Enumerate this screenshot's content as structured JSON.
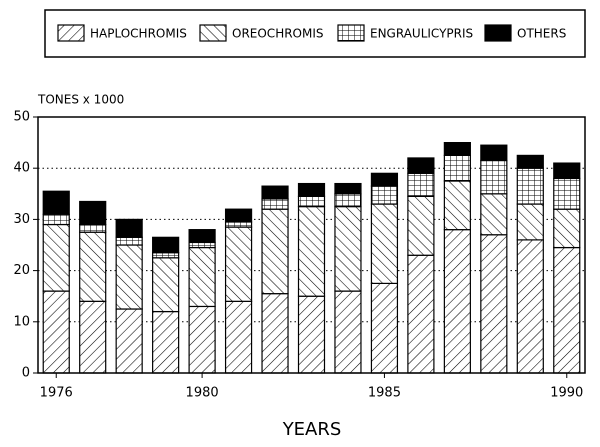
{
  "chart_data": {
    "type": "stacked_bar",
    "y_label": "TONES x 1000",
    "x_label": "YEARS",
    "categories": [
      "1976",
      null,
      null,
      null,
      "1980",
      null,
      null,
      null,
      null,
      "1985",
      null,
      null,
      null,
      null,
      "1990"
    ],
    "series": [
      {
        "name": "HAPLOCHROMIS",
        "color": "#000000",
        "hatch": "forward",
        "values": [
          16,
          14,
          12.5,
          12,
          13,
          14,
          15.5,
          15,
          16,
          17.5,
          23,
          28,
          27,
          26,
          24.5
        ]
      },
      {
        "name": "OREOCHROMIS",
        "color": "#000000",
        "hatch": "backward",
        "values": [
          13,
          13.5,
          12.5,
          10.5,
          11.5,
          14.5,
          16.5,
          17.5,
          16.5,
          15.5,
          11.5,
          9.5,
          8,
          7,
          7.5
        ]
      },
      {
        "name": "ENGRAULICYPRIS",
        "color": "#000000",
        "hatch": "cross",
        "values": [
          2,
          1.5,
          1.5,
          1,
          1,
          1,
          2,
          2,
          2.5,
          3.5,
          4.5,
          5,
          6.5,
          7,
          6
        ]
      },
      {
        "name": "OTHERS",
        "color": "#000000",
        "hatch": "solid",
        "values": [
          4.5,
          4.5,
          3.5,
          3,
          2.5,
          2.5,
          2.5,
          2.5,
          2,
          2.5,
          3,
          2.5,
          3,
          2.5,
          3
        ]
      }
    ],
    "ylim": [
      0,
      50
    ],
    "yticks": [
      0,
      10,
      20,
      30,
      40,
      50
    ],
    "grid": true
  }
}
